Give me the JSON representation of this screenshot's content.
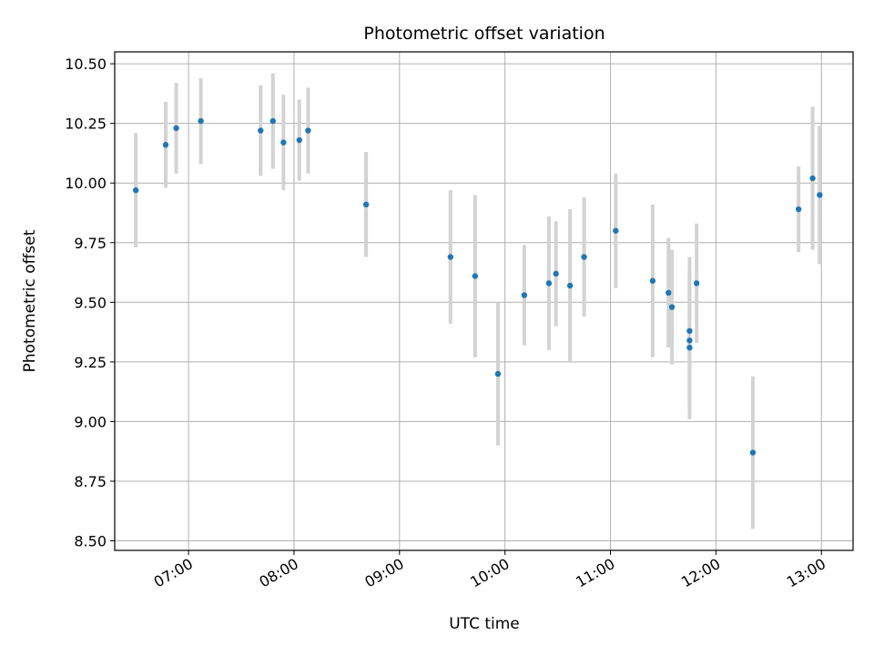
{
  "chart_data": {
    "type": "scatter",
    "title": "Photometric offset variation",
    "xlabel": "UTC time",
    "ylabel": "Photometric offset",
    "x_tick_labels": [
      "07:00",
      "08:00",
      "09:00",
      "10:00",
      "11:00",
      "12:00",
      "13:00"
    ],
    "y_tick_labels": [
      "8.50",
      "8.75",
      "9.00",
      "9.25",
      "9.50",
      "9.75",
      "10.00",
      "10.25",
      "10.50"
    ],
    "xlim": [
      "06:18",
      "13:18"
    ],
    "ylim": [
      8.46,
      10.55
    ],
    "grid": true,
    "marker_color": "#1f77b4",
    "errorbar_color": "#d3d3d3",
    "points": [
      {
        "time": "06:30",
        "y": 9.97,
        "yerr": 0.24
      },
      {
        "time": "06:47",
        "y": 10.16,
        "yerr": 0.18
      },
      {
        "time": "06:53",
        "y": 10.23,
        "yerr": 0.19
      },
      {
        "time": "07:07",
        "y": 10.26,
        "yerr": 0.18
      },
      {
        "time": "07:41",
        "y": 10.22,
        "yerr": 0.19
      },
      {
        "time": "07:48",
        "y": 10.26,
        "yerr": 0.2
      },
      {
        "time": "07:54",
        "y": 10.17,
        "yerr": 0.2
      },
      {
        "time": "08:03",
        "y": 10.18,
        "yerr": 0.17
      },
      {
        "time": "08:08",
        "y": 10.22,
        "yerr": 0.18
      },
      {
        "time": "08:41",
        "y": 9.91,
        "yerr": 0.22
      },
      {
        "time": "09:29",
        "y": 9.69,
        "yerr": 0.28
      },
      {
        "time": "09:43",
        "y": 9.61,
        "yerr": 0.34
      },
      {
        "time": "09:56",
        "y": 9.2,
        "yerr": 0.3
      },
      {
        "time": "10:11",
        "y": 9.53,
        "yerr": 0.21
      },
      {
        "time": "10:25",
        "y": 9.58,
        "yerr": 0.28
      },
      {
        "time": "10:29",
        "y": 9.62,
        "yerr": 0.22
      },
      {
        "time": "10:37",
        "y": 9.57,
        "yerr": 0.32
      },
      {
        "time": "10:45",
        "y": 9.69,
        "yerr": 0.25
      },
      {
        "time": "11:03",
        "y": 9.8,
        "yerr": 0.24
      },
      {
        "time": "11:24",
        "y": 9.59,
        "yerr": 0.32
      },
      {
        "time": "11:33",
        "y": 9.54,
        "yerr": 0.23
      },
      {
        "time": "11:35",
        "y": 9.48,
        "yerr": 0.24
      },
      {
        "time": "11:45",
        "y": 9.38,
        "yerr": 0.31
      },
      {
        "time": "11:45",
        "y": 9.34,
        "yerr": 0.29
      },
      {
        "time": "11:45",
        "y": 9.31,
        "yerr": 0.3
      },
      {
        "time": "11:49",
        "y": 9.58,
        "yerr": 0.25
      },
      {
        "time": "12:21",
        "y": 8.87,
        "yerr": 0.32
      },
      {
        "time": "12:47",
        "y": 9.89,
        "yerr": 0.18
      },
      {
        "time": "12:55",
        "y": 10.02,
        "yerr": 0.3
      },
      {
        "time": "12:59",
        "y": 9.95,
        "yerr": 0.29
      }
    ]
  }
}
